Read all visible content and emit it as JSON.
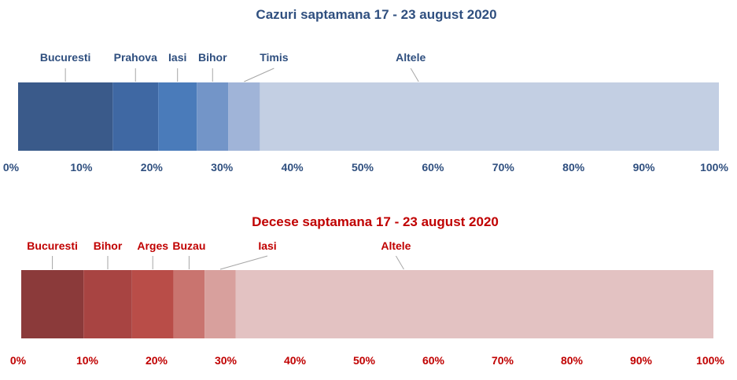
{
  "chart_data": [
    {
      "type": "bar",
      "stacked": true,
      "orientation": "horizontal",
      "title": "Cazuri saptamana 17 - 23 august 2020",
      "xlim": [
        0,
        100
      ],
      "ticks": [
        "0%",
        "10%",
        "20%",
        "30%",
        "40%",
        "50%",
        "60%",
        "70%",
        "80%",
        "90%",
        "100%"
      ],
      "grid": false,
      "text_color": "#2F4F7F",
      "series": [
        {
          "name": "Bucuresti",
          "value": 13.5,
          "color": "#3A5A8A"
        },
        {
          "name": "Prahova",
          "value": 6.5,
          "color": "#3F68A3"
        },
        {
          "name": "Iasi",
          "value": 5.5,
          "color": "#4A7BBA"
        },
        {
          "name": "Bihor",
          "value": 4.5,
          "color": "#7395C8"
        },
        {
          "name": "Timis",
          "value": 4.5,
          "color": "#A0B4D8"
        },
        {
          "name": "Altele",
          "value": 65.5,
          "color": "#C3CFE3"
        }
      ]
    },
    {
      "type": "bar",
      "stacked": true,
      "orientation": "horizontal",
      "title": "Decese saptamana 17 - 23 august 2020",
      "xlim": [
        0,
        100
      ],
      "ticks": [
        "0%",
        "10%",
        "20%",
        "30%",
        "40%",
        "50%",
        "60%",
        "70%",
        "80%",
        "90%",
        "100%"
      ],
      "grid": false,
      "text_color": "#C00000",
      "series": [
        {
          "name": "Bucuresti",
          "value": 9,
          "color": "#8B3A3A"
        },
        {
          "name": "Bihor",
          "value": 7,
          "color": "#A84442"
        },
        {
          "name": "Arges",
          "value": 6,
          "color": "#B94D48"
        },
        {
          "name": "Buzau",
          "value": 4.5,
          "color": "#C9746F"
        },
        {
          "name": "Iasi",
          "value": 4.5,
          "color": "#D8A09D"
        },
        {
          "name": "Altele",
          "value": 69,
          "color": "#E3C2C2"
        }
      ]
    }
  ]
}
